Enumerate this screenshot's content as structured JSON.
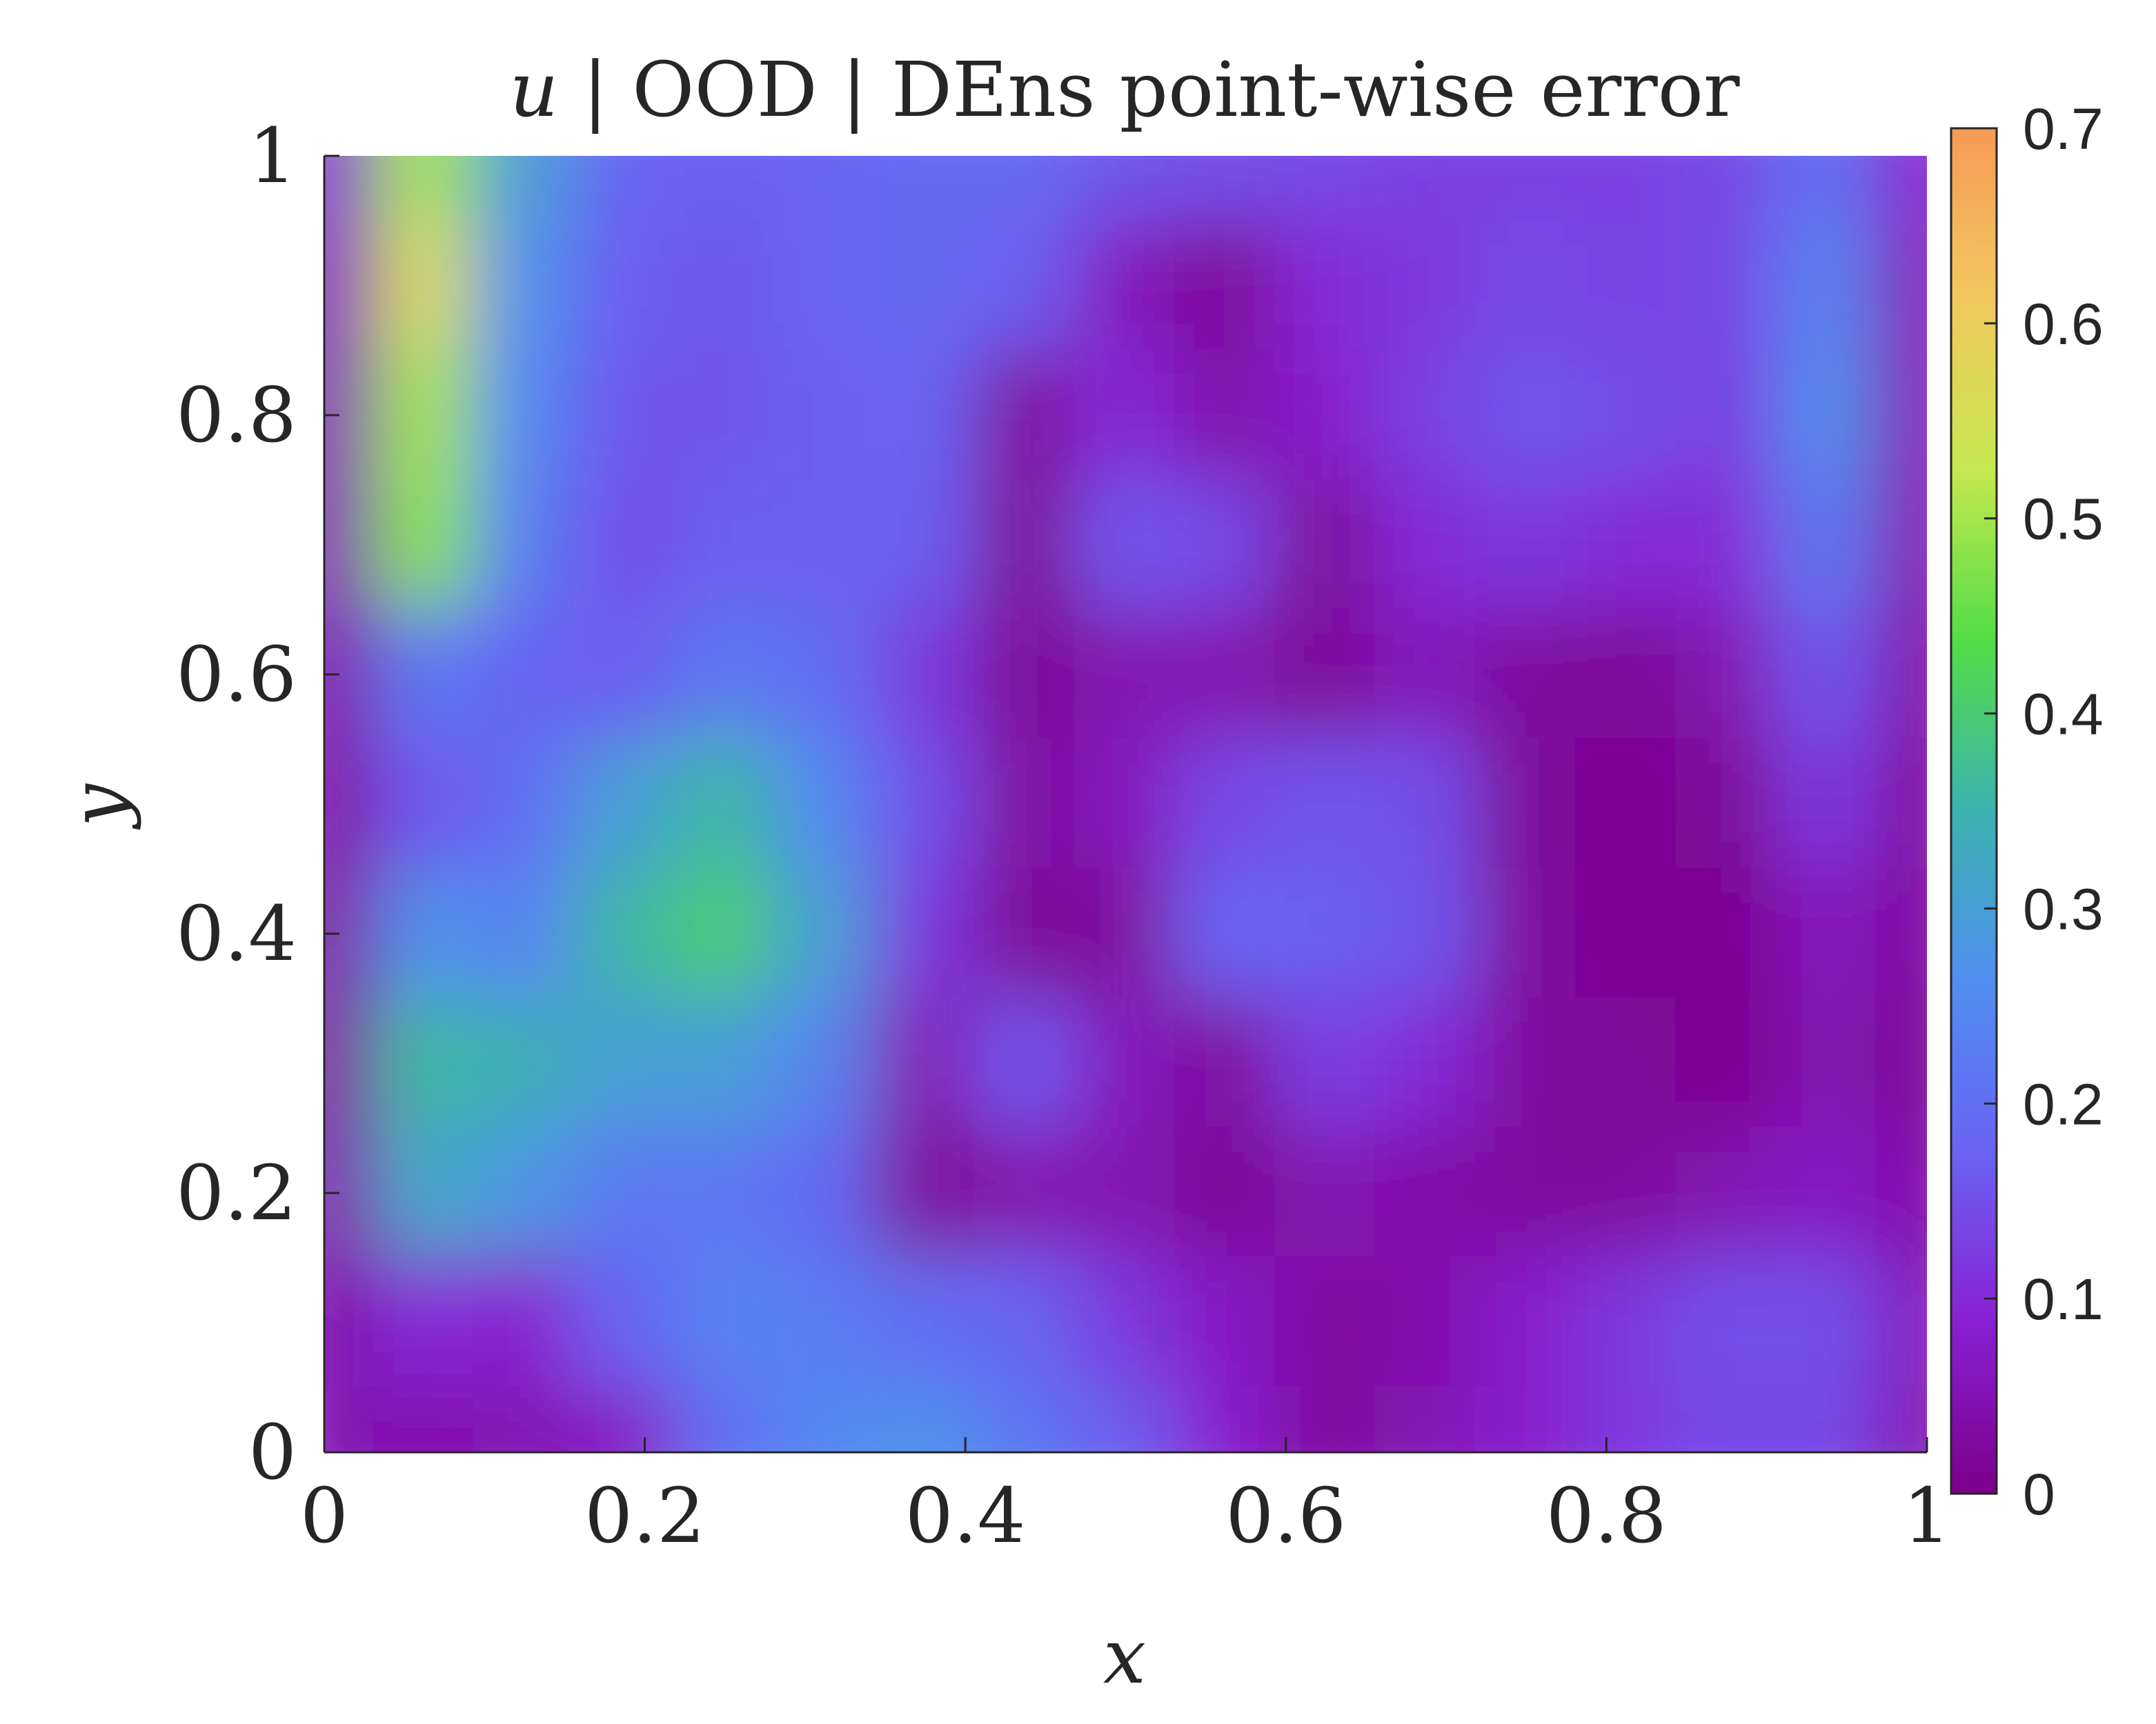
{
  "chart_data": {
    "type": "heatmap",
    "title": "u | OOD | DEns point-wise error",
    "title_parts": {
      "variable": "u",
      "rest": " | OOD | DEns point-wise error"
    },
    "xlabel": "x",
    "ylabel": "y",
    "xlim": [
      0,
      1
    ],
    "ylim": [
      0,
      1
    ],
    "x_ticks": [
      0,
      0.2,
      0.4,
      0.6,
      0.8,
      1
    ],
    "x_tick_labels": [
      "0",
      "0.2",
      "0.4",
      "0.6",
      "0.8",
      "1"
    ],
    "y_ticks": [
      0,
      0.2,
      0.4,
      0.6,
      0.8,
      1
    ],
    "y_tick_labels": [
      "0",
      "0.2",
      "0.4",
      "0.6",
      "0.8",
      "1"
    ],
    "colorbar": {
      "range": [
        0,
        0.7
      ],
      "ticks": [
        0,
        0.1,
        0.2,
        0.3,
        0.4,
        0.5,
        0.6,
        0.7
      ],
      "tick_labels": [
        "0",
        "0.1",
        "0.2",
        "0.3",
        "0.4",
        "0.5",
        "0.6",
        "0.7"
      ],
      "colormap": [
        "#7b008a",
        "#8a1fd4",
        "#6a63f5",
        "#4f8ef0",
        "#3bb3b0",
        "#52dd45",
        "#c5e84f",
        "#f2c85e",
        "#f79a55"
      ]
    },
    "grid": false,
    "x": [
      0,
      0.0625,
      0.125,
      0.1875,
      0.25,
      0.3125,
      0.375,
      0.4375,
      0.5,
      0.5625,
      0.625,
      0.6875,
      0.75,
      0.8125,
      0.875,
      0.9375,
      1
    ],
    "y": [
      1,
      0.9,
      0.8,
      0.7,
      0.6,
      0.5,
      0.4,
      0.3,
      0.2,
      0.1,
      0
    ],
    "values": [
      [
        0.08,
        0.5,
        0.3,
        0.18,
        0.17,
        0.18,
        0.19,
        0.19,
        0.16,
        0.15,
        0.14,
        0.13,
        0.13,
        0.13,
        0.14,
        0.2,
        0.08
      ],
      [
        0.06,
        0.56,
        0.27,
        0.17,
        0.16,
        0.18,
        0.19,
        0.17,
        0.06,
        0.02,
        0.1,
        0.12,
        0.14,
        0.13,
        0.14,
        0.24,
        0.06
      ],
      [
        0.05,
        0.5,
        0.25,
        0.16,
        0.16,
        0.17,
        0.18,
        0.03,
        0.1,
        0.04,
        0.08,
        0.13,
        0.16,
        0.15,
        0.13,
        0.26,
        0.05
      ],
      [
        0.05,
        0.48,
        0.23,
        0.15,
        0.17,
        0.17,
        0.17,
        0.02,
        0.16,
        0.14,
        0.02,
        0.1,
        0.12,
        0.1,
        0.1,
        0.22,
        0.05
      ],
      [
        0.04,
        0.22,
        0.18,
        0.17,
        0.22,
        0.2,
        0.12,
        0.02,
        0.05,
        0.05,
        0.02,
        0.06,
        0.03,
        0.02,
        0.05,
        0.16,
        0.04
      ],
      [
        0.03,
        0.16,
        0.2,
        0.3,
        0.36,
        0.25,
        0.15,
        0.03,
        0.06,
        0.14,
        0.16,
        0.15,
        0.02,
        0.01,
        0.02,
        0.12,
        0.03
      ],
      [
        0.03,
        0.27,
        0.24,
        0.36,
        0.4,
        0.3,
        0.12,
        0.02,
        0.03,
        0.18,
        0.17,
        0.16,
        0.03,
        0.01,
        0.01,
        0.06,
        0.03
      ],
      [
        0.03,
        0.36,
        0.34,
        0.3,
        0.3,
        0.24,
        0.05,
        0.16,
        0.06,
        0.03,
        0.13,
        0.1,
        0.03,
        0.02,
        0.01,
        0.05,
        0.02
      ],
      [
        0.04,
        0.32,
        0.28,
        0.22,
        0.22,
        0.19,
        0.02,
        0.05,
        0.05,
        0.02,
        0.05,
        0.04,
        0.03,
        0.03,
        0.05,
        0.07,
        0.04
      ],
      [
        0.04,
        0.1,
        0.08,
        0.18,
        0.24,
        0.23,
        0.2,
        0.18,
        0.12,
        0.07,
        0.03,
        0.04,
        0.08,
        0.12,
        0.15,
        0.15,
        0.06
      ],
      [
        0.05,
        0.04,
        0.05,
        0.07,
        0.2,
        0.25,
        0.27,
        0.22,
        0.17,
        0.08,
        0.03,
        0.05,
        0.08,
        0.12,
        0.14,
        0.14,
        0.05
      ]
    ]
  }
}
